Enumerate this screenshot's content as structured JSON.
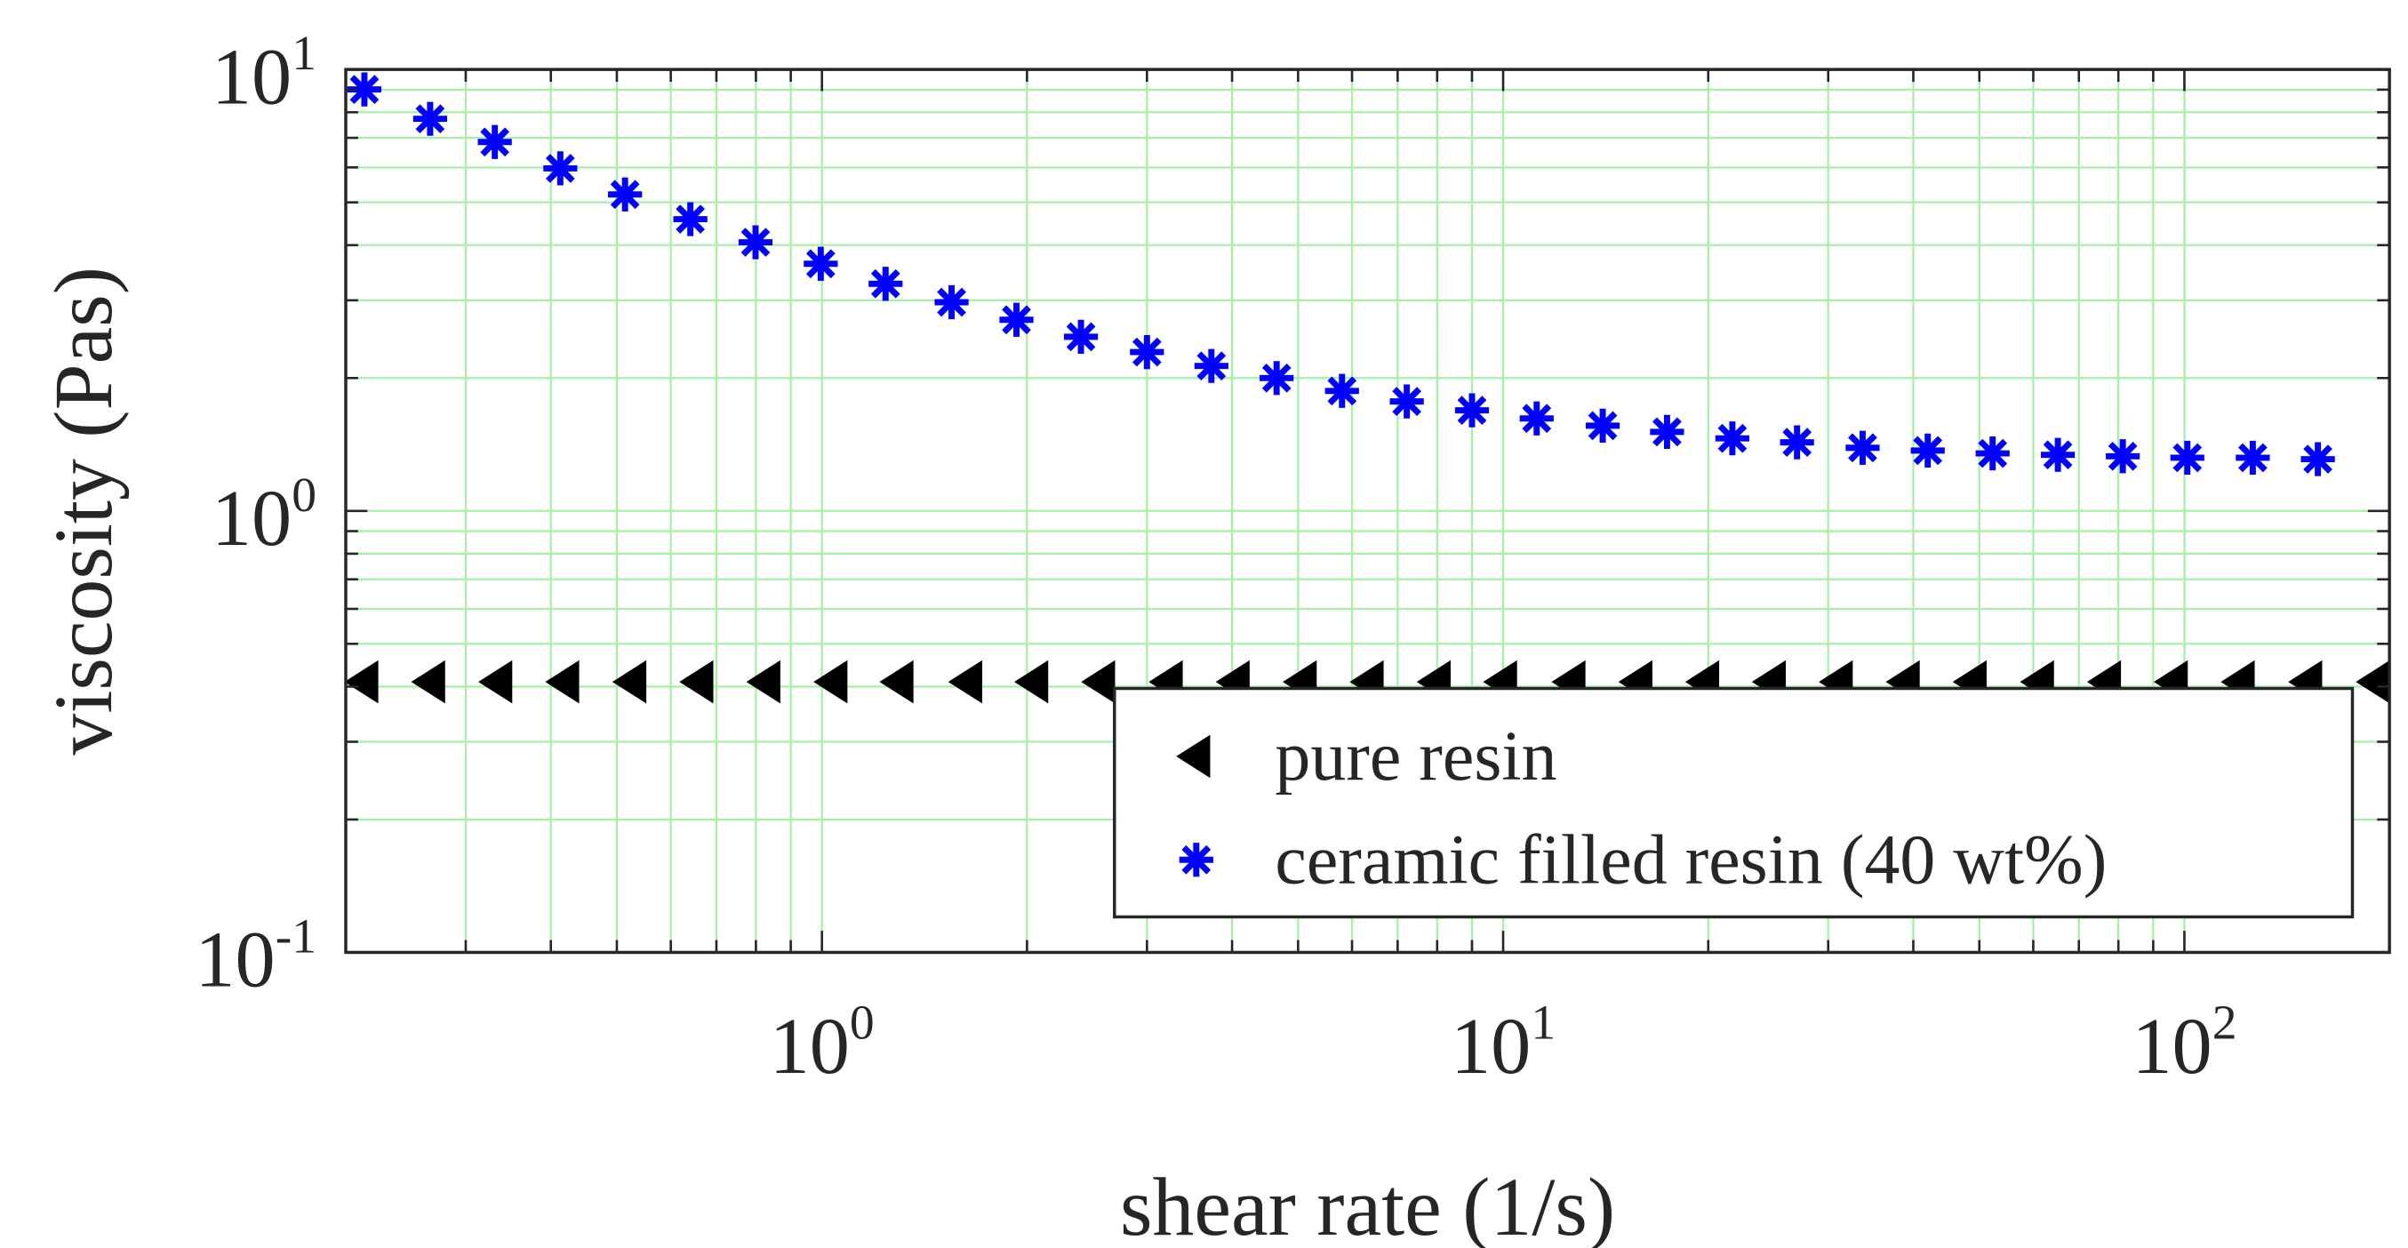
{
  "chart_data": {
    "type": "scatter",
    "title": "",
    "xlabel": "shear rate (1/s)",
    "ylabel": "viscosity (Pas)",
    "xscale": "log",
    "yscale": "log",
    "xlim": [
      0.2,
      200
    ],
    "ylim": [
      0.1,
      10
    ],
    "x_ticks": [
      {
        "base": "10",
        "exp": "0",
        "value": 1
      },
      {
        "base": "10",
        "exp": "1",
        "value": 10
      },
      {
        "base": "10",
        "exp": "2",
        "value": 100
      }
    ],
    "y_ticks": [
      {
        "base": "10",
        "exp": "-1",
        "value": 0.1
      },
      {
        "base": "10",
        "exp": "0",
        "value": 1
      },
      {
        "base": "10",
        "exp": "1",
        "value": 10
      }
    ],
    "grid": true,
    "grid_color": "#a6f0a6",
    "legend_position": "bottom-right",
    "series": [
      {
        "name": "pure resin",
        "marker": "triangle-left",
        "color": "#000000",
        "x": [
          0.213,
          0.267,
          0.335,
          0.42,
          0.527,
          0.661,
          0.829,
          1.04,
          1.3,
          1.64,
          2.05,
          2.57,
          3.23,
          4.05,
          5.08,
          6.37,
          7.99,
          10.0,
          12.6,
          15.8,
          19.8,
          24.8,
          31.1,
          39.0,
          48.9,
          61.4,
          77.0,
          96.5,
          121,
          152,
          191
        ],
        "y": [
          0.41,
          0.41,
          0.41,
          0.41,
          0.41,
          0.41,
          0.41,
          0.41,
          0.41,
          0.41,
          0.41,
          0.41,
          0.41,
          0.41,
          0.41,
          0.41,
          0.41,
          0.41,
          0.41,
          0.41,
          0.41,
          0.41,
          0.41,
          0.41,
          0.41,
          0.41,
          0.41,
          0.41,
          0.41,
          0.41,
          0.41
        ]
      },
      {
        "name": "ceramic filled resin (40 wt%)",
        "marker": "asterisk",
        "color": "#0000ff",
        "x": [
          0.213,
          0.266,
          0.331,
          0.413,
          0.514,
          0.641,
          0.799,
          0.996,
          1.24,
          1.55,
          1.93,
          2.4,
          3.0,
          3.73,
          4.65,
          5.8,
          7.22,
          9.0,
          11.2,
          14.0,
          17.4,
          21.7,
          27.0,
          33.7,
          42.0,
          52.3,
          65.2,
          81.2,
          101,
          126,
          157
        ],
        "y": [
          9.01,
          7.73,
          6.85,
          5.97,
          5.21,
          4.58,
          4.06,
          3.63,
          3.27,
          2.97,
          2.71,
          2.48,
          2.29,
          2.13,
          2.0,
          1.87,
          1.77,
          1.69,
          1.62,
          1.56,
          1.51,
          1.46,
          1.43,
          1.39,
          1.37,
          1.35,
          1.34,
          1.33,
          1.32,
          1.32,
          1.31
        ]
      }
    ]
  }
}
